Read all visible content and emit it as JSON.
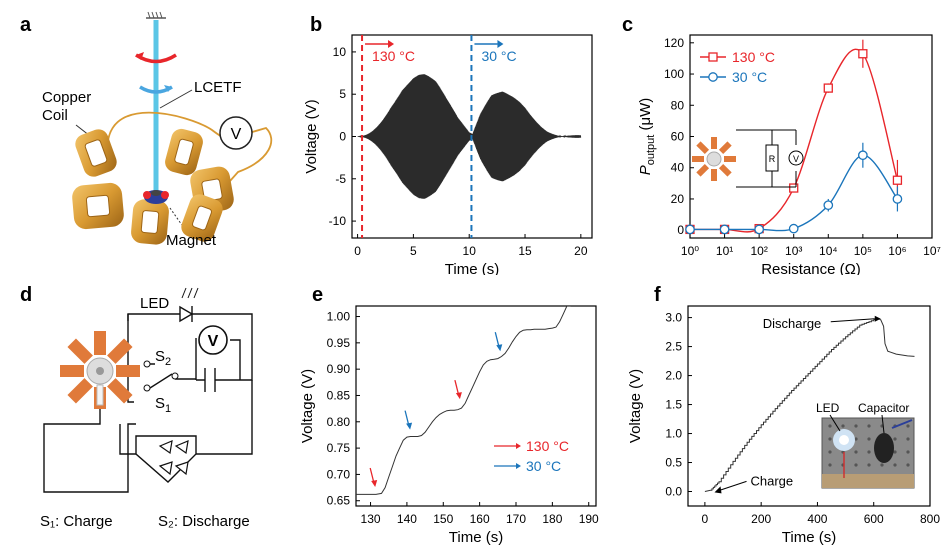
{
  "panels": {
    "a": {
      "label": "a",
      "copper_coil": [
        "Copper",
        "Coil"
      ],
      "fiber": "LCETF",
      "voltmeter": "V",
      "magnet": "Magnet"
    },
    "b": {
      "label": "b"
    },
    "c": {
      "label": "c",
      "circuit_r": "R",
      "circuit_v": "V"
    },
    "d": {
      "label": "d",
      "led": "LED",
      "voltmeter": "V",
      "s2": "S",
      "s2_sub": "2",
      "s1": "S",
      "s1_sub": "1",
      "legend_charge": "S₁: Charge",
      "legend_discharge": "S₂: Discharge"
    },
    "e": {
      "label": "e"
    },
    "f": {
      "label": "f",
      "photo_led": "LED",
      "photo_capacitor": "Capacitor"
    }
  },
  "colors": {
    "red": "#e8262b",
    "blue": "#1b75bb",
    "copper": "#d99a32",
    "axis": "#000000",
    "trace": "#333333"
  },
  "chart_data": [
    {
      "id": "b",
      "type": "line",
      "xlabel": "Time (s)",
      "ylabel": "Voltage (V)",
      "xlim": [
        -0.5,
        21
      ],
      "ylim": [
        -12,
        12
      ],
      "xticks": [
        0,
        5,
        10,
        15,
        20
      ],
      "yticks": [
        -10,
        -5,
        0,
        5,
        10
      ],
      "markers": [
        {
          "x": 0.4,
          "label": "130 °C",
          "color": "#e8262b"
        },
        {
          "x": 10.2,
          "label": "30 °C",
          "color": "#1b75bb"
        }
      ],
      "series": [
        {
          "envelope": {
            "x": [
              0,
              0.5,
              1,
              2,
              3,
              4,
              5,
              5.5,
              6,
              7,
              8,
              9,
              10,
              10.3,
              11,
              12,
              13,
              14,
              14.5,
              15,
              16,
              17,
              18,
              19,
              20
            ],
            "y": [
              0.5,
              1,
              2,
              4.5,
              7,
              8.6,
              9.1,
              9,
              8.6,
              7,
              4.5,
              2.2,
              0.5,
              0.3,
              2.8,
              5.5,
              6.7,
              6.8,
              6.7,
              6.3,
              4.5,
              2.5,
              1.5,
              1,
              0.5
            ]
          }
        }
      ]
    },
    {
      "id": "c",
      "type": "line",
      "xlabel": "Resistance (Ω)",
      "ylabel": "P",
      "ylabel_sub": "output",
      "ylabel_unit": " (μW)",
      "xscale": "log",
      "xlim": [
        0,
        7
      ],
      "ylim": [
        -5,
        125
      ],
      "xticks": [
        "10⁰",
        "10¹",
        "10²",
        "10³",
        "10⁴",
        "10⁵",
        "10⁶",
        "10⁷"
      ],
      "yticks": [
        0,
        20,
        40,
        60,
        80,
        100,
        120
      ],
      "legend_position": "top-left",
      "series": [
        {
          "name": "130 °C",
          "color": "#e8262b",
          "marker": "square",
          "x": [
            1,
            10,
            100,
            1000,
            10000,
            100000,
            1000000
          ],
          "y": [
            0.5,
            0.5,
            1,
            27,
            91,
            113,
            32
          ],
          "err": [
            0,
            0,
            0,
            0,
            3,
            9,
            13
          ]
        },
        {
          "name": "30 °C",
          "color": "#1b75bb",
          "marker": "circle",
          "x": [
            1,
            10,
            100,
            1000,
            10000,
            100000,
            1000000
          ],
          "y": [
            0.5,
            0.5,
            0.5,
            1,
            16,
            48,
            20
          ],
          "err": [
            0,
            0,
            0,
            0,
            4,
            8,
            8
          ]
        }
      ]
    },
    {
      "id": "e",
      "type": "line",
      "xlabel": "Time (s)",
      "ylabel": "Voltage (V)",
      "xlim": [
        126,
        192
      ],
      "ylim": [
        0.64,
        1.02
      ],
      "xticks": [
        130,
        140,
        150,
        160,
        170,
        180,
        190
      ],
      "yticks": [
        0.65,
        0.7,
        0.75,
        0.8,
        0.85,
        0.9,
        0.95,
        1.0
      ],
      "ytick_labels": [
        "0.65",
        "0.70",
        "0.75",
        "0.80",
        "0.85",
        "0.90",
        "0.95",
        "1.00"
      ],
      "legend_position": "bottom-right",
      "legend": [
        {
          "label": "130 °C",
          "color": "#e8262b"
        },
        {
          "label": "30 °C",
          "color": "#1b75bb"
        }
      ],
      "arrows": [
        {
          "x": 131,
          "y": 0.678,
          "color": "#e8262b"
        },
        {
          "x": 140.6,
          "y": 0.787,
          "color": "#1b75bb"
        },
        {
          "x": 154.3,
          "y": 0.845,
          "color": "#e8262b"
        },
        {
          "x": 165.4,
          "y": 0.936,
          "color": "#1b75bb"
        }
      ],
      "series": [
        {
          "x": [
            126,
            131.5,
            133,
            134,
            135,
            136,
            137,
            138,
            139,
            140,
            141,
            142,
            143,
            144,
            145,
            146,
            147,
            148,
            149,
            150,
            151,
            152,
            153,
            154,
            155,
            156,
            157,
            158,
            159,
            160,
            161,
            162,
            163,
            164,
            165,
            166,
            167,
            168,
            169,
            170,
            171,
            172,
            173,
            174,
            175,
            176,
            177,
            178,
            179,
            180,
            181,
            182,
            183,
            184,
            185
          ],
          "y": [
            0.662,
            0.662,
            0.664,
            0.675,
            0.695,
            0.715,
            0.735,
            0.75,
            0.765,
            0.771,
            0.772,
            0.772,
            0.772,
            0.774,
            0.78,
            0.79,
            0.8,
            0.808,
            0.814,
            0.818,
            0.821,
            0.822,
            0.822,
            0.823,
            0.826,
            0.835,
            0.85,
            0.865,
            0.88,
            0.895,
            0.908,
            0.915,
            0.918,
            0.919,
            0.92,
            0.924,
            0.93,
            0.94,
            0.952,
            0.962,
            0.97,
            0.974,
            0.975,
            0.975,
            0.976,
            0.976,
            0.976,
            0.976,
            0.977,
            0.978,
            0.98,
            0.99,
            1.005,
            1.02,
            1.03
          ]
        }
      ]
    },
    {
      "id": "f",
      "type": "line",
      "xlabel": "Time (s)",
      "ylabel": "Voltage (V)",
      "xlim": [
        -60,
        800
      ],
      "ylim": [
        -0.25,
        3.2
      ],
      "xticks": [
        0,
        200,
        400,
        600,
        800
      ],
      "yticks": [
        0.0,
        0.5,
        1.0,
        1.5,
        2.0,
        2.5,
        3.0
      ],
      "ytick_labels": [
        "0.0",
        "0.5",
        "1.0",
        "1.5",
        "2.0",
        "2.5",
        "3.0"
      ],
      "annotations": [
        {
          "text": "Discharge",
          "x": 625,
          "y": 2.98
        },
        {
          "text": "Charge",
          "x": 20,
          "y": 0.02
        }
      ],
      "series": [
        {
          "x": [
            0,
            20,
            50,
            100,
            150,
            200,
            250,
            300,
            350,
            400,
            450,
            500,
            550,
            600,
            615,
            625,
            635,
            640,
            650,
            680,
            720,
            745
          ],
          "y": [
            0,
            0.02,
            0.17,
            0.52,
            0.85,
            1.15,
            1.43,
            1.7,
            1.95,
            2.2,
            2.45,
            2.67,
            2.87,
            2.96,
            2.99,
            2.96,
            2.85,
            2.55,
            2.42,
            2.37,
            2.34,
            2.33
          ]
        }
      ]
    }
  ]
}
